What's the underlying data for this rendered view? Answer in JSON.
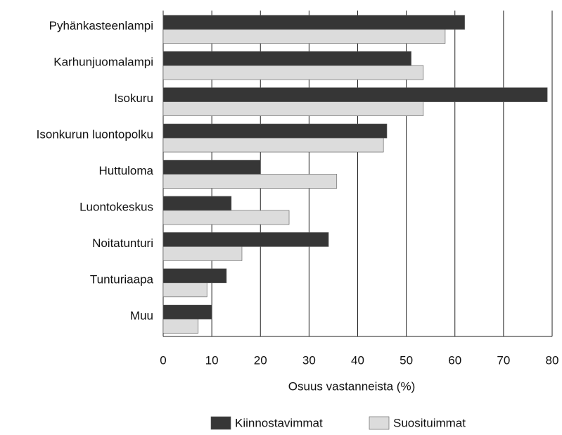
{
  "chart_data": {
    "type": "hbar",
    "xlabel": "Osuus vastanneista (%)",
    "categories": [
      "Pyhänkasteenlampi",
      "Karhunjuomalampi",
      "Isokuru",
      "Isonkurun luontopolku",
      "Huttuloma",
      "Luontokeskus",
      "Noitatunturi",
      "Tunturiaapa",
      "Muu"
    ],
    "series": [
      {
        "name": "Kiinnostavimmat",
        "color": "#363636",
        "values": [
          62,
          51,
          79,
          46,
          20,
          14,
          34,
          13,
          10
        ]
      },
      {
        "name": "Suosituimmat",
        "color": "#dcdcdc",
        "values": [
          58,
          53.5,
          53.5,
          45.3,
          35.7,
          25.9,
          16.2,
          9,
          7.2
        ]
      }
    ],
    "xlim": [
      0,
      80
    ],
    "xticks": [
      0,
      10,
      20,
      30,
      40,
      50,
      60,
      70,
      80
    ],
    "grid": true,
    "legend": "bottom"
  }
}
